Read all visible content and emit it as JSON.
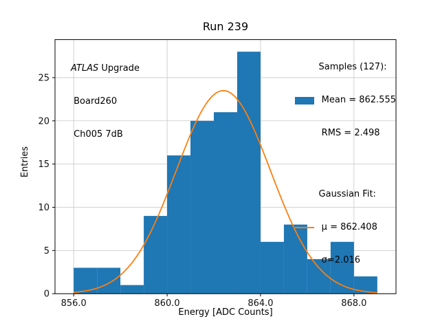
{
  "chart_data": {
    "type": "bar",
    "title": "Run 239",
    "xlabel": "Energy [ADC Counts]",
    "ylabel": "Entries",
    "bin_edges": [
      856,
      857,
      858,
      859,
      860,
      861,
      862,
      863,
      864,
      865,
      866,
      867,
      868,
      869
    ],
    "counts": [
      3,
      3,
      1,
      9,
      16,
      20,
      21,
      28,
      6,
      8,
      4,
      6,
      2
    ],
    "total_entries": 127,
    "bar_color": "#1f77b4",
    "fit": {
      "type": "gaussian",
      "mu": 862.408,
      "sigma": 2.016,
      "amplitude": 23.5,
      "color": "#ff7f0e",
      "x_range": [
        856,
        869
      ]
    },
    "xlim": [
      855.2,
      869.8
    ],
    "ylim": [
      0,
      29.4
    ],
    "xticks": [
      "856.0",
      "860.0",
      "864.0",
      "868.0"
    ],
    "xtick_values": [
      856,
      860,
      864,
      868
    ],
    "yticks": [
      "0",
      "5",
      "10",
      "15",
      "20",
      "25"
    ],
    "ytick_values": [
      0,
      5,
      10,
      15,
      20,
      25
    ],
    "grid": true,
    "legend_position": "upper right"
  },
  "annotation": {
    "atlas": "ATLAS",
    "upgrade": " Upgrade",
    "board": " Board260",
    "channel": " Ch005 7dB"
  },
  "legend": {
    "samples": {
      "title": "Samples (127):",
      "mean": " Mean = 862.555",
      "rms": " RMS = 2.498"
    },
    "gaussian": {
      "title": "Gaussian Fit:",
      "mu": " μ = 862.408",
      "sigma": " σ=2.016"
    }
  }
}
